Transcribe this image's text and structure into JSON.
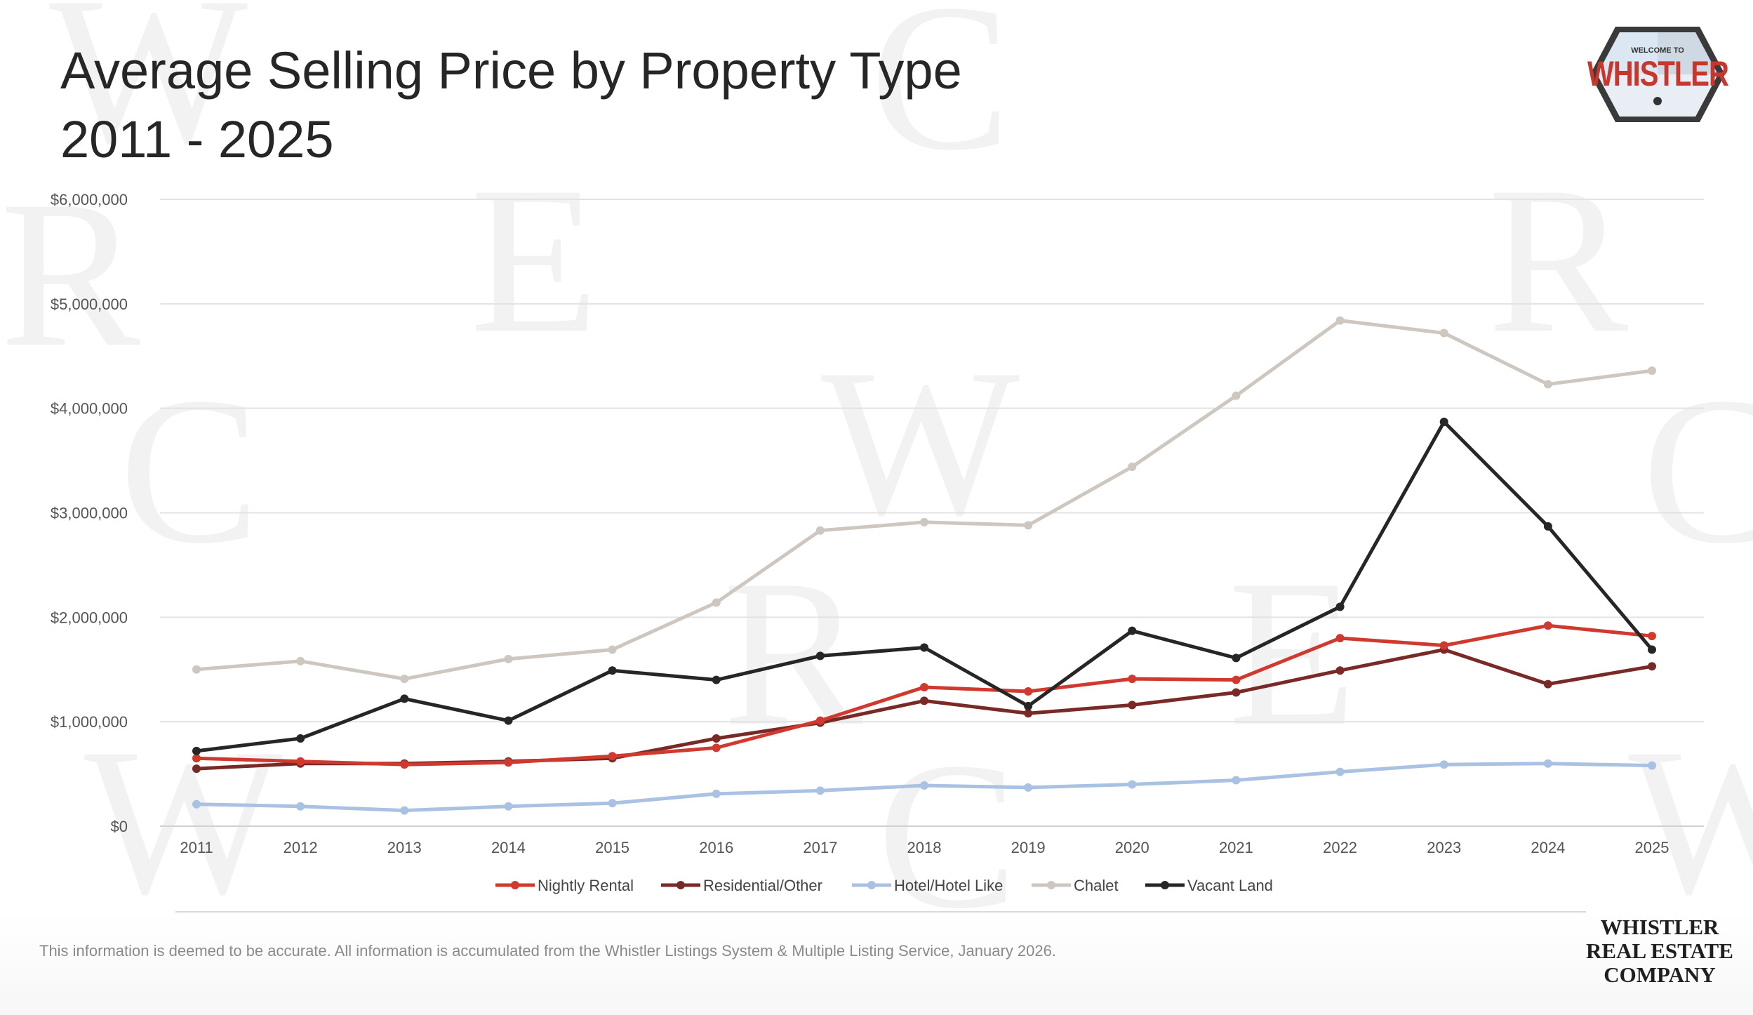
{
  "title": {
    "line1": "Average Selling Price by Property Type",
    "line2": "2011 - 2025"
  },
  "logo": {
    "text": "WHISTLER",
    "small_text": "WELCOME TO"
  },
  "brand": {
    "line1": "WHISTLER",
    "line2": "REAL ESTATE",
    "line3": "COMPANY"
  },
  "disclaimer": "This information is deemed to be accurate. All information is accumulated from the Whistler Listings System & Multiple Listing Service, January 2026.",
  "colors": {
    "nightly_rental": "#d03a2e",
    "residential_other": "#7a2a26",
    "hotel": "#a9c1e3",
    "chalet": "#cdc7c0",
    "vacant_land": "#262626"
  },
  "chart_data": {
    "type": "line",
    "title": "Average Selling Price by Property Type 2011 - 2025",
    "xlabel": "",
    "ylabel": "",
    "x": [
      "2011",
      "2012",
      "2013",
      "2014",
      "2015",
      "2016",
      "2017",
      "2018",
      "2019",
      "2020",
      "2021",
      "2022",
      "2023",
      "2024",
      "2025"
    ],
    "ylim": [
      0,
      6000000
    ],
    "yticks": [
      0,
      1000000,
      2000000,
      3000000,
      4000000,
      5000000,
      6000000
    ],
    "ytick_labels": [
      "$0",
      "$1,000,000",
      "$2,000,000",
      "$3,000,000",
      "$4,000,000",
      "$5,000,000",
      "$6,000,000"
    ],
    "grid": true,
    "legend_position": "bottom",
    "series": [
      {
        "name": "Nightly Rental",
        "color": "#d03a2e",
        "values": [
          650000,
          620000,
          590000,
          610000,
          670000,
          750000,
          1010000,
          1330000,
          1290000,
          1410000,
          1400000,
          1800000,
          1730000,
          1920000,
          1820000
        ]
      },
      {
        "name": "Residential/Other",
        "color": "#7a2a26",
        "values": [
          550000,
          600000,
          600000,
          620000,
          650000,
          840000,
          990000,
          1200000,
          1080000,
          1160000,
          1280000,
          1490000,
          1690000,
          1360000,
          1530000
        ]
      },
      {
        "name": "Hotel/Hotel Like",
        "color": "#a9c1e3",
        "values": [
          210000,
          190000,
          150000,
          190000,
          220000,
          310000,
          340000,
          390000,
          370000,
          400000,
          440000,
          520000,
          590000,
          600000,
          580000
        ]
      },
      {
        "name": "Chalet",
        "color": "#cdc7c0",
        "values": [
          1500000,
          1580000,
          1410000,
          1600000,
          1690000,
          2140000,
          2830000,
          2910000,
          2880000,
          3440000,
          4120000,
          4840000,
          4720000,
          4230000,
          4360000
        ]
      },
      {
        "name": "Vacant Land",
        "color": "#262626",
        "values": [
          720000,
          840000,
          1220000,
          1010000,
          1490000,
          1400000,
          1630000,
          1710000,
          1150000,
          1870000,
          1610000,
          2100000,
          3870000,
          2870000,
          1690000
        ]
      }
    ]
  }
}
